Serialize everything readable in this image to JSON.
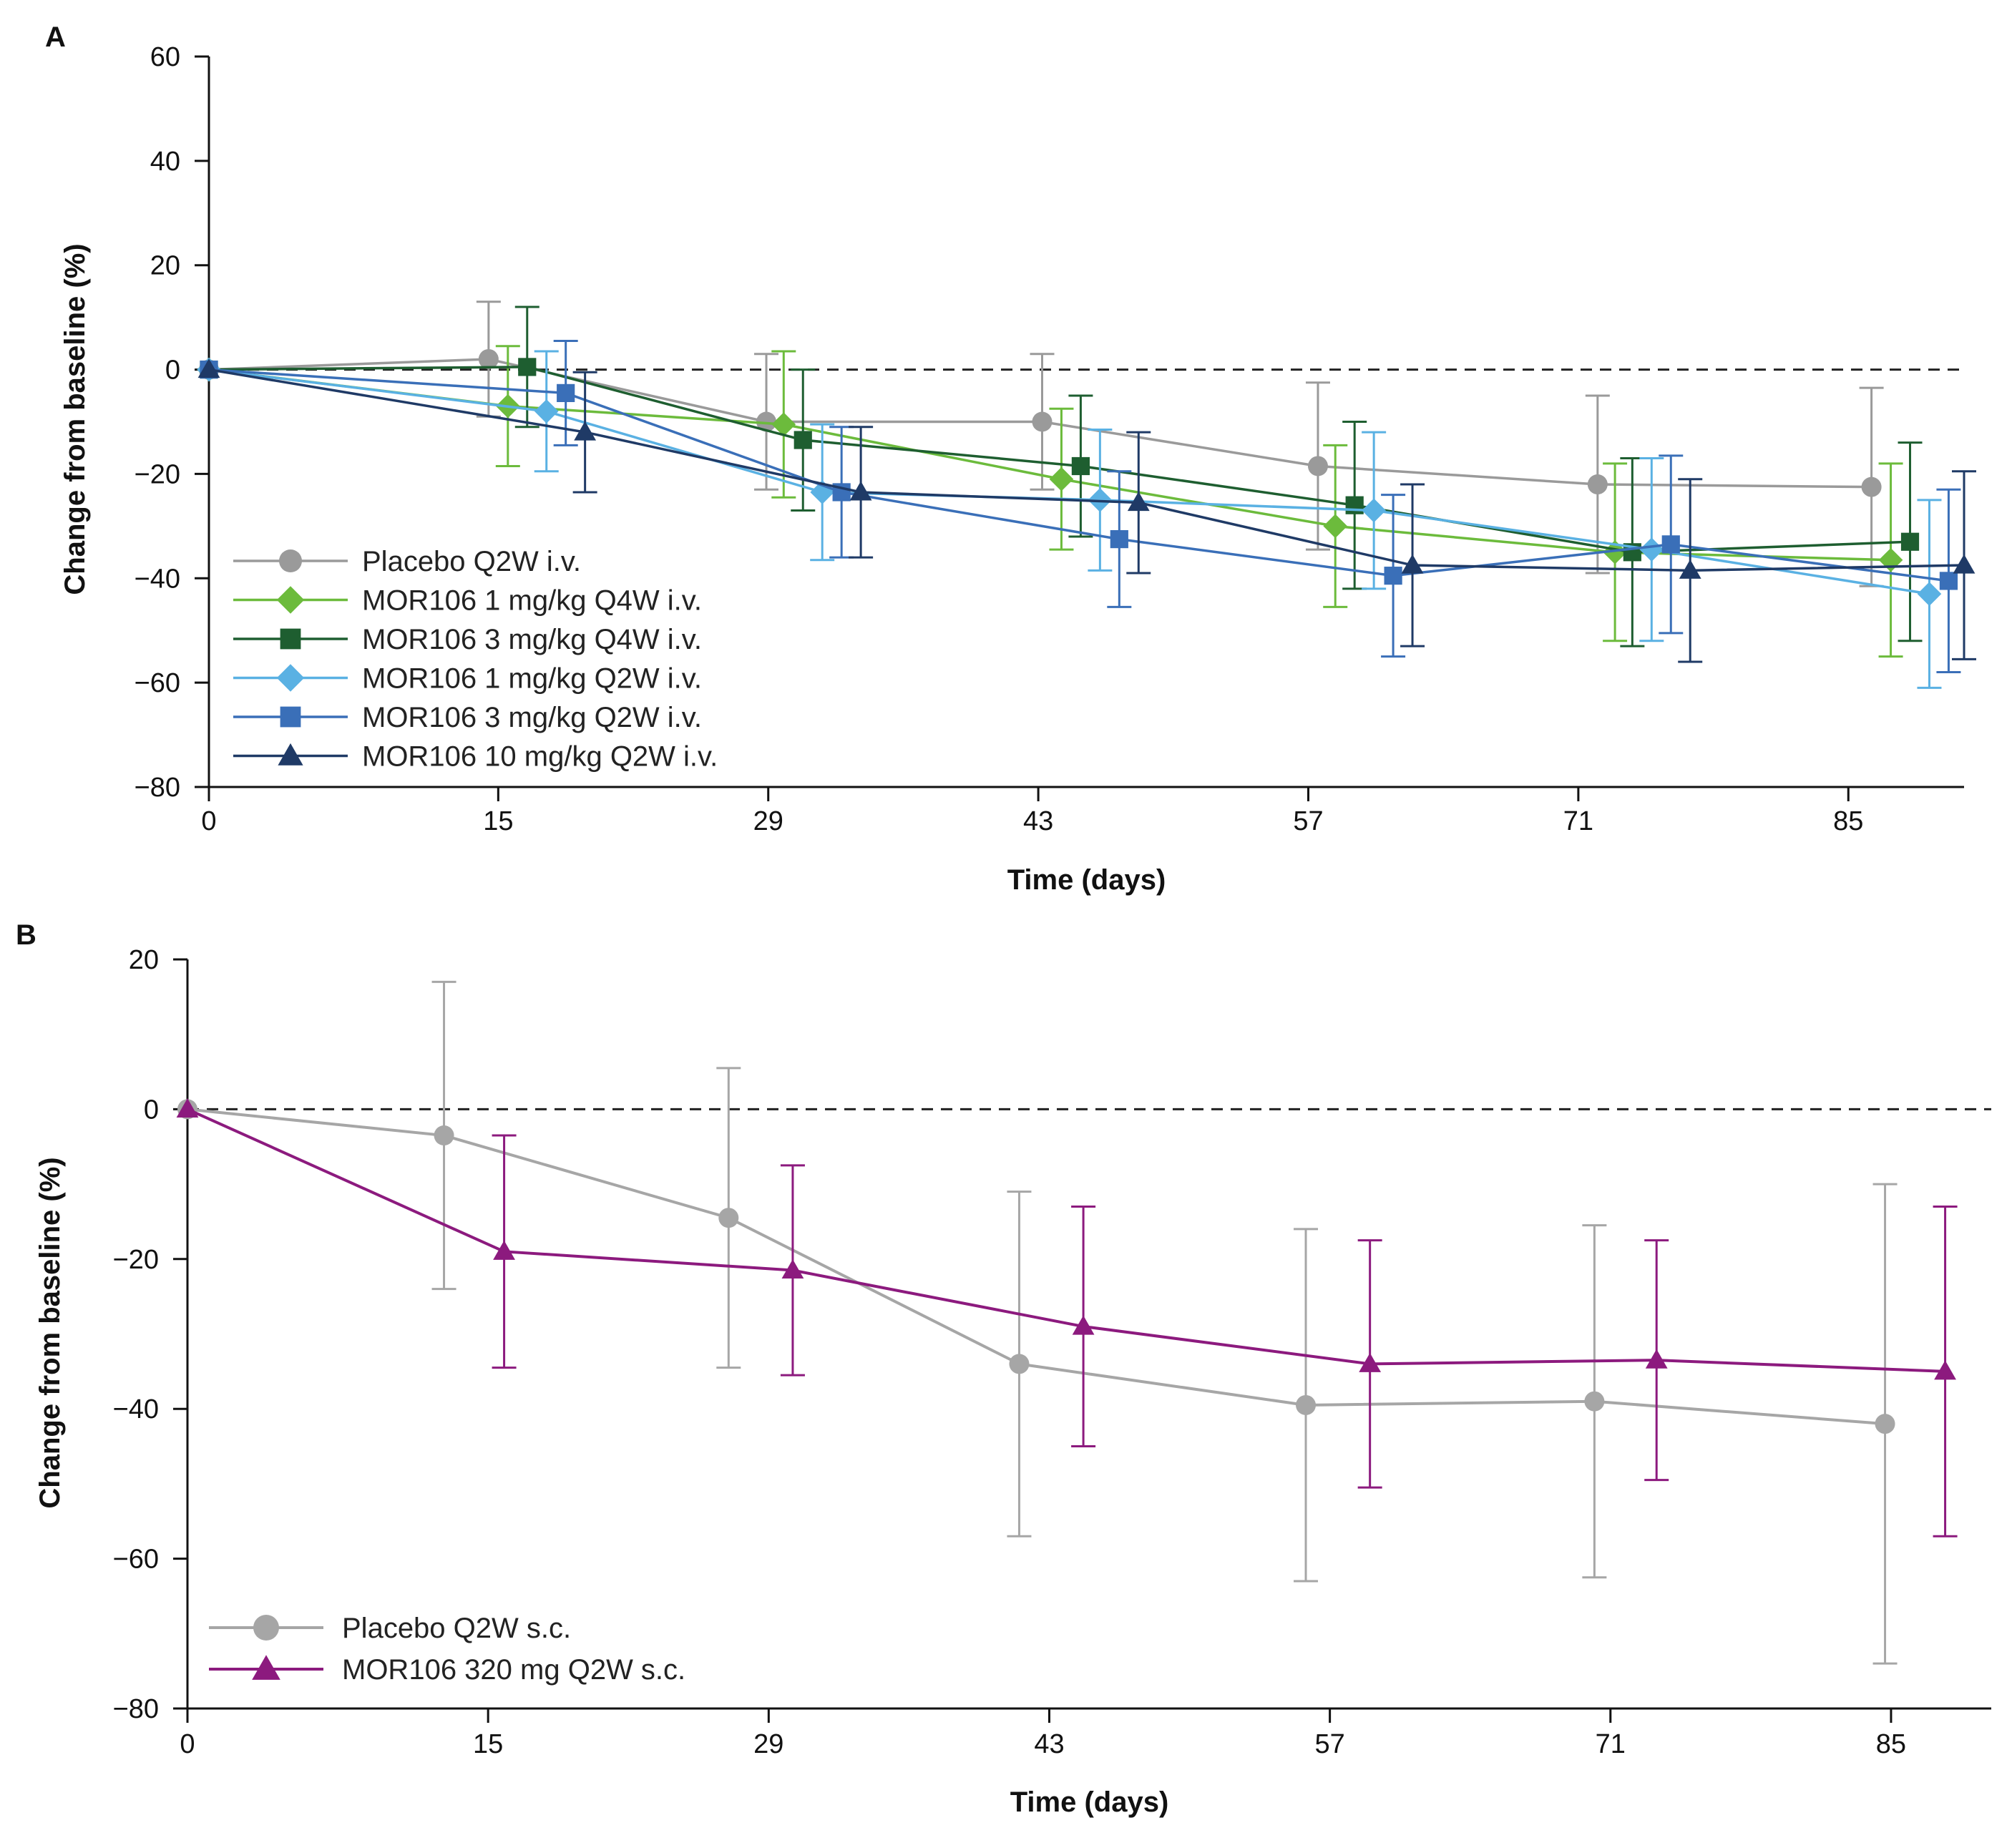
{
  "chart_data": [
    {
      "panel_label": "A",
      "type": "line",
      "xlabel": "Time (days)",
      "ylabel": "Change from baseline (%)",
      "xlim": [
        0,
        91
      ],
      "ylim": [
        -80,
        60
      ],
      "xticks": [
        0,
        15,
        29,
        43,
        57,
        71,
        85
      ],
      "yticks": [
        60,
        40,
        20,
        0,
        -20,
        -40,
        -60,
        -80
      ],
      "reference_line": 0,
      "legend_position": "bottom-left",
      "series": [
        {
          "name": "Placebo Q2W i.v.",
          "color": "#9a9a9a",
          "marker": "circle",
          "x": [
            0,
            14.5,
            28.9,
            43.2,
            57.5,
            72.0,
            86.2
          ],
          "y": [
            0,
            2,
            -10,
            -10,
            -18.5,
            -22,
            -22.5
          ],
          "err": [
            0,
            11,
            13,
            13,
            16,
            17,
            19
          ]
        },
        {
          "name": "MOR106 1 mg/kg Q4W i.v.",
          "color": "#6cbb3c",
          "marker": "diamond",
          "x": [
            0,
            15.5,
            29.8,
            44.2,
            58.4,
            72.9,
            87.2
          ],
          "y": [
            0,
            -7,
            -10.5,
            -21,
            -30,
            -35,
            -36.5
          ],
          "err": [
            0,
            11.5,
            14,
            13.5,
            15.5,
            17,
            18.5
          ]
        },
        {
          "name": "MOR106 3 mg/kg Q4W i.v.",
          "color": "#1e5e30",
          "marker": "square",
          "x": [
            0,
            16.5,
            30.8,
            45.2,
            59.4,
            73.8,
            88.2
          ],
          "y": [
            0,
            0.5,
            -13.5,
            -18.5,
            -26,
            -35,
            -33
          ],
          "err": [
            0,
            11.5,
            13.5,
            13.5,
            16,
            18,
            19
          ]
        },
        {
          "name": "MOR106 1 mg/kg Q2W i.v.",
          "color": "#5ab1e3",
          "marker": "diamond",
          "x": [
            0,
            17.5,
            31.8,
            46.2,
            60.4,
            74.8,
            89.2
          ],
          "y": [
            0,
            -8,
            -23.5,
            -25,
            -27,
            -34.5,
            -43
          ],
          "err": [
            0,
            11.5,
            13,
            13.5,
            15,
            17.5,
            18
          ]
        },
        {
          "name": "MOR106 3 mg/kg Q2W i.v.",
          "color": "#3a6fb8",
          "marker": "square",
          "x": [
            0,
            18.5,
            32.8,
            47.2,
            61.4,
            75.8,
            90.2
          ],
          "y": [
            0,
            -4.5,
            -23.5,
            -32.5,
            -39.5,
            -33.5,
            -40.5
          ],
          "err": [
            0,
            10,
            12.5,
            13,
            15.5,
            17,
            17.5
          ]
        },
        {
          "name": "MOR106 10 mg/kg Q2W i.v.",
          "color": "#1f3a66",
          "marker": "triangle",
          "x": [
            0,
            19.5,
            33.8,
            48.2,
            62.4,
            76.8,
            91.0
          ],
          "y": [
            0,
            -12,
            -23.5,
            -25.5,
            -37.5,
            -38.5,
            -37.5
          ],
          "err": [
            0,
            11.5,
            12.5,
            13.5,
            15.5,
            17.5,
            18
          ]
        }
      ]
    },
    {
      "panel_label": "B",
      "type": "line",
      "xlabel": "Time (days)",
      "ylabel": "Change from baseline (%)",
      "xlim": [
        0,
        90
      ],
      "ylim": [
        -80,
        20
      ],
      "xticks": [
        0,
        15,
        29,
        43,
        57,
        71,
        85
      ],
      "yticks": [
        20,
        0,
        -20,
        -40,
        -60,
        -80
      ],
      "reference_line": 0,
      "legend_position": "bottom-left",
      "series": [
        {
          "name": "Placebo Q2W s.c.",
          "color": "#a6a6a6",
          "marker": "circle",
          "x": [
            0,
            12.8,
            27.0,
            41.5,
            55.8,
            70.2,
            84.7
          ],
          "y": [
            0,
            -3.5,
            -14.5,
            -34,
            -39.5,
            -39,
            -42
          ],
          "err": [
            0,
            20.5,
            20,
            23,
            23.5,
            23.5,
            32
          ]
        },
        {
          "name": "MOR106 320 mg Q2W s.c.",
          "color": "#8c1a7e",
          "marker": "triangle",
          "x": [
            0,
            15.8,
            30.2,
            44.7,
            59.0,
            73.3,
            87.7
          ],
          "y": [
            0,
            -19,
            -21.5,
            -29,
            -34,
            -33.5,
            -35
          ],
          "err": [
            0,
            15.5,
            14,
            16,
            16.5,
            16,
            22
          ]
        }
      ]
    }
  ]
}
